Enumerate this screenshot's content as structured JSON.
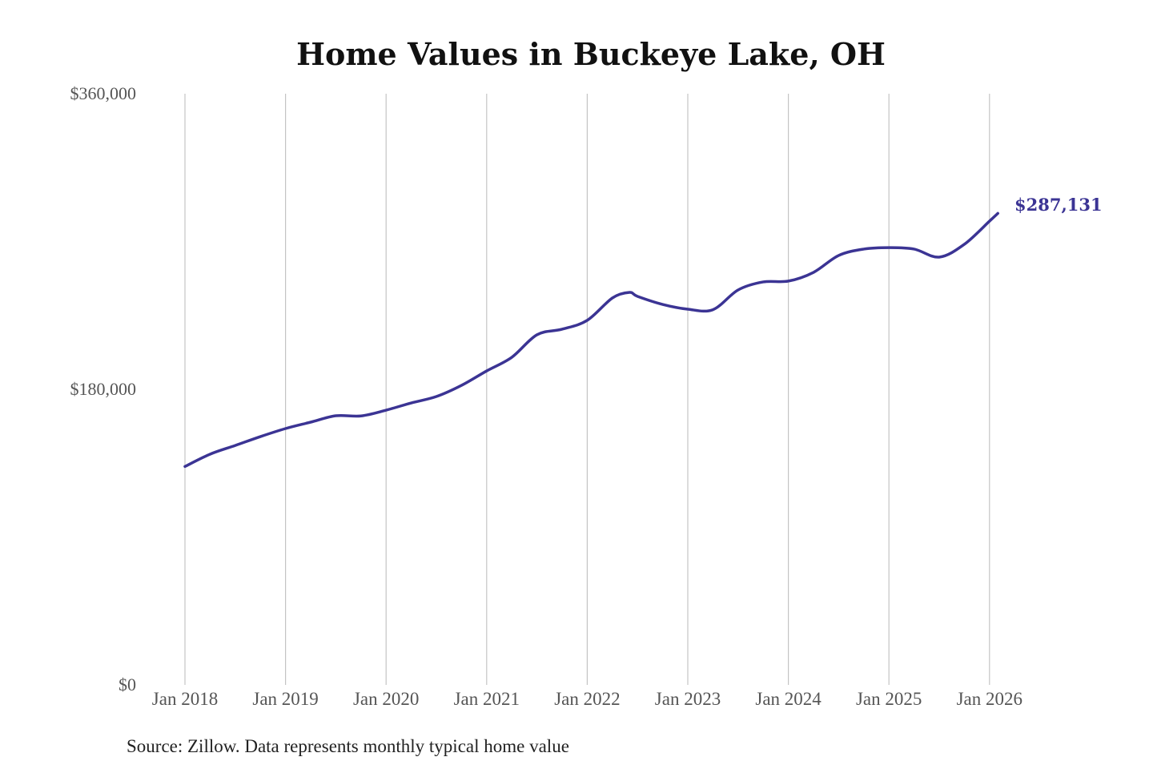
{
  "chart_data": {
    "type": "line",
    "title": "Home Values in Buckeye Lake, OH",
    "xlabel": "",
    "ylabel": "",
    "ylim": [
      0,
      360000
    ],
    "xlim": [
      2018,
      2026.1
    ],
    "y_ticks": [
      {
        "value": 0,
        "label": "$0"
      },
      {
        "value": 180000,
        "label": "$180,000"
      },
      {
        "value": 360000,
        "label": "$360,000"
      }
    ],
    "x_ticks": [
      {
        "value": 2018,
        "label": "Jan 2018"
      },
      {
        "value": 2019,
        "label": "Jan 2019"
      },
      {
        "value": 2020,
        "label": "Jan 2020"
      },
      {
        "value": 2021,
        "label": "Jan 2021"
      },
      {
        "value": 2022,
        "label": "Jan 2022"
      },
      {
        "value": 2023,
        "label": "Jan 2023"
      },
      {
        "value": 2024,
        "label": "Jan 2024"
      },
      {
        "value": 2025,
        "label": "Jan 2025"
      },
      {
        "value": 2026,
        "label": "Jan 2026"
      }
    ],
    "grid": "vertical",
    "series": [
      {
        "name": "Typical home value",
        "color": "#3b3494",
        "x": [
          2018,
          2018.25,
          2018.5,
          2018.75,
          2019,
          2019.25,
          2019.5,
          2019.75,
          2020,
          2020.25,
          2020.5,
          2020.75,
          2021,
          2021.25,
          2021.5,
          2021.75,
          2022,
          2022.25,
          2022.42,
          2022.5,
          2022.75,
          2023,
          2023.25,
          2023.5,
          2023.75,
          2024,
          2024.25,
          2024.5,
          2024.75,
          2025,
          2025.25,
          2025.5,
          2025.75,
          2026,
          2026.083
        ],
        "values": [
          133000,
          140500,
          145800,
          151200,
          156100,
          160000,
          163900,
          163800,
          167300,
          171700,
          175600,
          182400,
          191200,
          199500,
          213200,
          216600,
          222000,
          235600,
          239000,
          236600,
          231700,
          228800,
          228500,
          240500,
          245400,
          245900,
          251200,
          261500,
          265400,
          266300,
          265400,
          260500,
          268300,
          282400,
          287131
        ]
      }
    ],
    "end_label": "$287,131",
    "source": "Source: Zillow. Data represents monthly typical home value"
  }
}
